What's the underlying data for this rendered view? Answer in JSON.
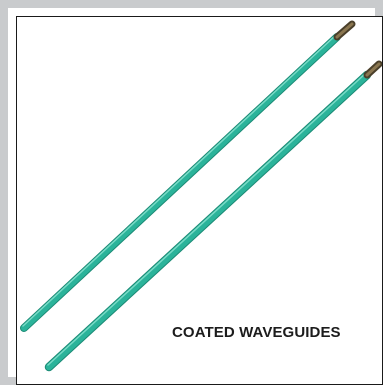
{
  "caption": "COATED WAVEGUIDES",
  "colors": {
    "outer_border": "#c9cbcd",
    "inner_border": "#1a1a1a",
    "rod_coating": "#2bb39a",
    "rod_highlight": "#7fe0cc",
    "rod_shadow": "#1b8a75",
    "rod_tip": "#6b5a3a"
  },
  "objects": [
    {
      "name": "waveguide-rod-back"
    },
    {
      "name": "waveguide-rod-front"
    }
  ]
}
